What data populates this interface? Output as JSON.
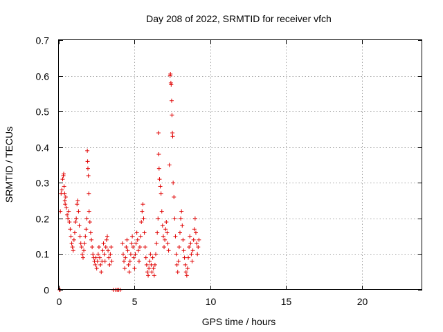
{
  "chart_data": {
    "type": "scatter",
    "title": "Day 208 of 2022, SRMTID for receiver vfch",
    "xlabel": "GPS time / hours",
    "ylabel": "SRMTID / TECUs",
    "xlim": [
      0,
      24
    ],
    "ylim": [
      0,
      0.7
    ],
    "xticks": [
      0,
      5,
      10,
      15,
      20
    ],
    "yticks": [
      0,
      0.1,
      0.2,
      0.3,
      0.4,
      0.5,
      0.6,
      0.7
    ],
    "x_tick_labels": [
      "0",
      "5",
      "10",
      "15",
      "20"
    ],
    "y_tick_labels": [
      "0",
      "0.1",
      "0.2",
      "0.3",
      "0.4",
      "0.5",
      "0.6",
      "0.7"
    ],
    "grid": true,
    "marker": "+",
    "series": [
      {
        "name": "SRMTID",
        "color": "#e00000",
        "points": [
          [
            0.05,
            0.0
          ],
          [
            0.08,
            0.0
          ],
          [
            3.6,
            0.0
          ],
          [
            3.75,
            0.0
          ],
          [
            3.85,
            0.0
          ],
          [
            3.95,
            0.0
          ],
          [
            4.05,
            0.0
          ],
          [
            0.1,
            0.22
          ],
          [
            0.15,
            0.27
          ],
          [
            0.2,
            0.28
          ],
          [
            0.25,
            0.31
          ],
          [
            0.3,
            0.32
          ],
          [
            0.32,
            0.325
          ],
          [
            0.35,
            0.29
          ],
          [
            0.38,
            0.27
          ],
          [
            0.4,
            0.25
          ],
          [
            0.42,
            0.24
          ],
          [
            0.45,
            0.26
          ],
          [
            0.5,
            0.23
          ],
          [
            0.55,
            0.21
          ],
          [
            0.6,
            0.2
          ],
          [
            0.65,
            0.22
          ],
          [
            0.7,
            0.19
          ],
          [
            0.75,
            0.17
          ],
          [
            0.8,
            0.15
          ],
          [
            0.85,
            0.13
          ],
          [
            0.9,
            0.12
          ],
          [
            0.95,
            0.11
          ],
          [
            1.0,
            0.14
          ],
          [
            1.05,
            0.16
          ],
          [
            1.1,
            0.19
          ],
          [
            1.15,
            0.2
          ],
          [
            1.2,
            0.24
          ],
          [
            1.25,
            0.25
          ],
          [
            1.3,
            0.22
          ],
          [
            1.35,
            0.18
          ],
          [
            1.4,
            0.15
          ],
          [
            1.45,
            0.13
          ],
          [
            1.5,
            0.12
          ],
          [
            1.55,
            0.1
          ],
          [
            1.6,
            0.09
          ],
          [
            1.65,
            0.11
          ],
          [
            1.7,
            0.13
          ],
          [
            1.75,
            0.15
          ],
          [
            1.8,
            0.17
          ],
          [
            1.85,
            0.2
          ],
          [
            1.88,
            0.39
          ],
          [
            1.9,
            0.36
          ],
          [
            1.92,
            0.34
          ],
          [
            1.95,
            0.32
          ],
          [
            1.98,
            0.27
          ],
          [
            2.0,
            0.22
          ],
          [
            2.05,
            0.19
          ],
          [
            2.1,
            0.16
          ],
          [
            2.15,
            0.14
          ],
          [
            2.2,
            0.12
          ],
          [
            2.25,
            0.1
          ],
          [
            2.3,
            0.09
          ],
          [
            2.35,
            0.08
          ],
          [
            2.4,
            0.07
          ],
          [
            2.45,
            0.09
          ],
          [
            2.5,
            0.06
          ],
          [
            2.55,
            0.08
          ],
          [
            2.6,
            0.1
          ],
          [
            2.65,
            0.12
          ],
          [
            2.7,
            0.09
          ],
          [
            2.75,
            0.07
          ],
          [
            2.8,
            0.05
          ],
          [
            2.85,
            0.08
          ],
          [
            2.9,
            0.11
          ],
          [
            2.95,
            0.13
          ],
          [
            3.0,
            0.1
          ],
          [
            3.05,
            0.08
          ],
          [
            3.1,
            0.12
          ],
          [
            3.15,
            0.14
          ],
          [
            3.2,
            0.15
          ],
          [
            3.25,
            0.11
          ],
          [
            3.3,
            0.09
          ],
          [
            3.35,
            0.07
          ],
          [
            3.4,
            0.1
          ],
          [
            3.45,
            0.12
          ],
          [
            3.5,
            0.08
          ],
          [
            4.2,
            0.13
          ],
          [
            4.25,
            0.1
          ],
          [
            4.3,
            0.08
          ],
          [
            4.35,
            0.06
          ],
          [
            4.4,
            0.09
          ],
          [
            4.45,
            0.12
          ],
          [
            4.5,
            0.14
          ],
          [
            4.55,
            0.11
          ],
          [
            4.6,
            0.07
          ],
          [
            4.65,
            0.05
          ],
          [
            4.7,
            0.08
          ],
          [
            4.75,
            0.1
          ],
          [
            4.8,
            0.13
          ],
          [
            4.85,
            0.15
          ],
          [
            4.9,
            0.12
          ],
          [
            4.95,
            0.09
          ],
          [
            5.0,
            0.06
          ],
          [
            5.05,
            0.1
          ],
          [
            5.1,
            0.13
          ],
          [
            5.15,
            0.16
          ],
          [
            5.2,
            0.14
          ],
          [
            5.25,
            0.11
          ],
          [
            5.3,
            0.08
          ],
          [
            5.35,
            0.12
          ],
          [
            5.4,
            0.15
          ],
          [
            5.45,
            0.19
          ],
          [
            5.5,
            0.22
          ],
          [
            5.55,
            0.24
          ],
          [
            5.6,
            0.2
          ],
          [
            5.65,
            0.16
          ],
          [
            5.7,
            0.12
          ],
          [
            5.75,
            0.09
          ],
          [
            5.8,
            0.07
          ],
          [
            5.85,
            0.05
          ],
          [
            5.9,
            0.04
          ],
          [
            5.95,
            0.06
          ],
          [
            6.0,
            0.08
          ],
          [
            6.05,
            0.1
          ],
          [
            6.1,
            0.07
          ],
          [
            6.15,
            0.05
          ],
          [
            6.2,
            0.09
          ],
          [
            6.25,
            0.06
          ],
          [
            6.3,
            0.04
          ],
          [
            6.35,
            0.07
          ],
          [
            6.4,
            0.1
          ],
          [
            6.45,
            0.13
          ],
          [
            6.5,
            0.16
          ],
          [
            6.55,
            0.2
          ],
          [
            6.58,
            0.44
          ],
          [
            6.6,
            0.38
          ],
          [
            6.62,
            0.34
          ],
          [
            6.65,
            0.31
          ],
          [
            6.7,
            0.29
          ],
          [
            6.75,
            0.27
          ],
          [
            6.8,
            0.22
          ],
          [
            6.85,
            0.18
          ],
          [
            6.9,
            0.15
          ],
          [
            6.95,
            0.12
          ],
          [
            7.0,
            0.14
          ],
          [
            7.05,
            0.17
          ],
          [
            7.1,
            0.19
          ],
          [
            7.15,
            0.16
          ],
          [
            7.2,
            0.13
          ],
          [
            7.25,
            0.11
          ],
          [
            7.3,
            0.35
          ],
          [
            7.35,
            0.6
          ],
          [
            7.37,
            0.605
          ],
          [
            7.4,
            0.58
          ],
          [
            7.42,
            0.575
          ],
          [
            7.45,
            0.53
          ],
          [
            7.47,
            0.49
          ],
          [
            7.5,
            0.44
          ],
          [
            7.52,
            0.43
          ],
          [
            7.55,
            0.3
          ],
          [
            7.6,
            0.26
          ],
          [
            7.65,
            0.2
          ],
          [
            7.7,
            0.15
          ],
          [
            7.75,
            0.1
          ],
          [
            7.8,
            0.07
          ],
          [
            7.85,
            0.05
          ],
          [
            7.9,
            0.08
          ],
          [
            7.95,
            0.12
          ],
          [
            8.0,
            0.16
          ],
          [
            8.05,
            0.2
          ],
          [
            8.1,
            0.22
          ],
          [
            8.15,
            0.18
          ],
          [
            8.2,
            0.14
          ],
          [
            8.25,
            0.11
          ],
          [
            8.3,
            0.09
          ],
          [
            8.35,
            0.07
          ],
          [
            8.4,
            0.05
          ],
          [
            8.45,
            0.04
          ],
          [
            8.5,
            0.06
          ],
          [
            8.55,
            0.09
          ],
          [
            8.6,
            0.12
          ],
          [
            8.65,
            0.15
          ],
          [
            8.7,
            0.13
          ],
          [
            8.75,
            0.1
          ],
          [
            8.8,
            0.08
          ],
          [
            8.85,
            0.11
          ],
          [
            8.9,
            0.14
          ],
          [
            8.95,
            0.17
          ],
          [
            9.0,
            0.2
          ],
          [
            9.05,
            0.16
          ],
          [
            9.1,
            0.13
          ],
          [
            9.15,
            0.1
          ],
          [
            9.2,
            0.12
          ],
          [
            9.25,
            0.14
          ]
        ]
      }
    ]
  }
}
